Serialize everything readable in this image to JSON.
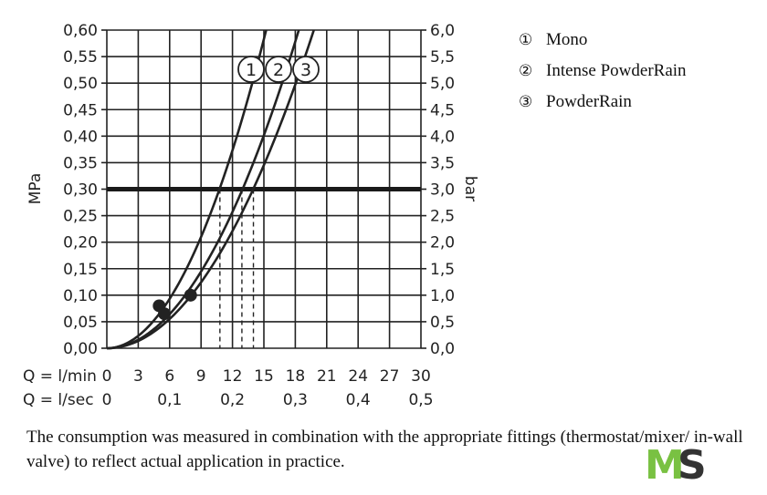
{
  "chart_data": {
    "type": "line",
    "ylabel_left": "MPa",
    "ylabel_right": "bar",
    "y_ticks_left": [
      "0,00",
      "0,05",
      "0,10",
      "0,15",
      "0,20",
      "0,25",
      "0,30",
      "0,35",
      "0,40",
      "0,45",
      "0,50",
      "0,55",
      "0,60"
    ],
    "y_ticks_right": [
      "0,0",
      "0,5",
      "1,0",
      "1,5",
      "2,0",
      "2,5",
      "3,0",
      "3,5",
      "4,0",
      "4,5",
      "5,0",
      "5,5",
      "6,0"
    ],
    "x_row1_label": "Q = l/min",
    "x_row1_ticks": [
      "0",
      "3",
      "6",
      "9",
      "12",
      "15",
      "18",
      "21",
      "24",
      "27",
      "30"
    ],
    "x_row2_label": "Q = l/sec",
    "x_row2_ticks": [
      "0",
      "0,1",
      "0,2",
      "0,3",
      "0,4",
      "0,5"
    ],
    "xlim": [
      0,
      30
    ],
    "ylim": [
      0,
      0.6
    ],
    "grid": true,
    "reference_line": {
      "y": 0.3
    },
    "series": [
      {
        "name": "Mono",
        "number": "1",
        "k": 0.002591,
        "marker": {
          "x": 5.0,
          "y": 0.08
        },
        "at_ref": 10.8
      },
      {
        "name": "Intense PowderRain",
        "number": "2",
        "k": 0.001785,
        "marker": {
          "x": 5.5,
          "y": 0.065
        },
        "at_ref": 12.9
      },
      {
        "name": "PowderRain",
        "number": "3",
        "k": 0.001535,
        "marker": {
          "x": 8.0,
          "y": 0.1
        },
        "at_ref": 14.0
      }
    ],
    "extra_marker": {
      "x": 5.5,
      "y": 0.065
    }
  },
  "legend": [
    {
      "num": "①",
      "label": "Mono"
    },
    {
      "num": "②",
      "label": "Intense PowderRain"
    },
    {
      "num": "③",
      "label": "PowderRain"
    }
  ],
  "caption": "The consumption was measured in combination with the appropriate fittings (thermostat/mixer/ in-wall valve) to reflect actual application in practice.",
  "logo": {
    "part1": "M",
    "part2": "S"
  }
}
